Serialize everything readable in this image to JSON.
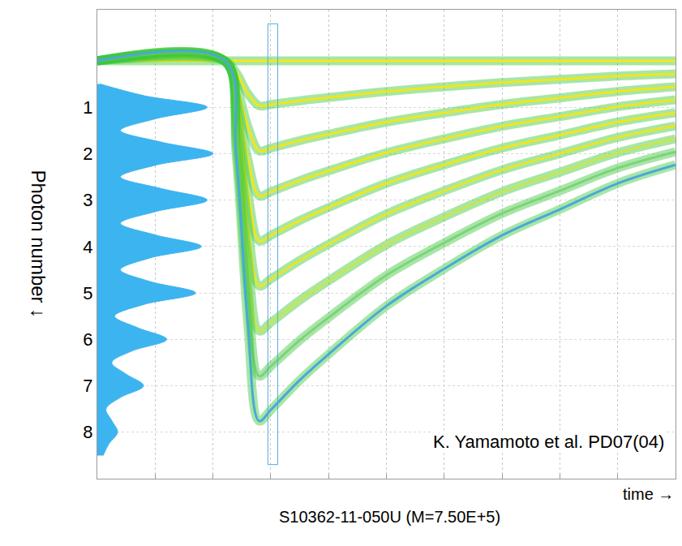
{
  "chart_data": {
    "type": "line",
    "x_label": "time →",
    "y_label": "Photon number ↓",
    "caption": "S10362-11-050U (M=7.50E+5)",
    "annotations": [
      "K. Yamamoto et al. PD07(04)"
    ],
    "x": [
      0,
      2.2,
      2.4,
      2.6,
      2.8,
      3,
      3.5,
      4,
      5,
      6,
      7,
      8,
      9,
      10
    ],
    "series": [
      {
        "color": "#f5e61e",
        "values": [
          0,
          0,
          0,
          0,
          0,
          0,
          0,
          0,
          0,
          0,
          0,
          0,
          0,
          0
        ]
      },
      {
        "color": "#f0e61e",
        "values": [
          0,
          0,
          0.25,
          0.7,
          0.97,
          0.94,
          0.86,
          0.79,
          0.66,
          0.56,
          0.47,
          0.4,
          0.33,
          0.28
        ]
      },
      {
        "color": "#f0e61e",
        "values": [
          0,
          0,
          0.5,
          1.4,
          1.94,
          1.88,
          1.72,
          1.58,
          1.32,
          1.12,
          0.94,
          0.8,
          0.66,
          0.56
        ]
      },
      {
        "color": "#f0e61e",
        "values": [
          0,
          0,
          0.75,
          2.1,
          2.91,
          2.82,
          2.58,
          2.37,
          1.98,
          1.68,
          1.41,
          1.2,
          0.99,
          0.84
        ]
      },
      {
        "color": "#f0e61e",
        "values": [
          0,
          0,
          1,
          2.8,
          3.88,
          3.76,
          3.44,
          3.16,
          2.64,
          2.24,
          1.88,
          1.6,
          1.32,
          1.12
        ]
      },
      {
        "color": "#e8e628",
        "values": [
          0,
          0,
          1.25,
          3.5,
          4.85,
          4.7,
          4.3,
          3.95,
          3.3,
          2.8,
          2.35,
          2,
          1.65,
          1.4
        ]
      },
      {
        "color": "#c8e650",
        "values": [
          0,
          0,
          1.5,
          4.2,
          5.82,
          5.64,
          5.16,
          4.74,
          3.96,
          3.36,
          2.82,
          2.4,
          1.98,
          1.68
        ]
      },
      {
        "color": "#7fd27a",
        "values": [
          0,
          0,
          1.75,
          4.9,
          6.79,
          6.58,
          6.02,
          5.53,
          4.62,
          3.92,
          3.29,
          2.8,
          2.31,
          1.96
        ]
      },
      {
        "color": "#4aa8d8",
        "values": [
          0,
          0,
          2,
          5.6,
          7.76,
          7.52,
          6.88,
          6.32,
          5.28,
          4.48,
          3.76,
          3.2,
          2.64,
          2.24
        ]
      }
    ],
    "xlim": [
      0,
      10
    ],
    "xticks": [
      0,
      1,
      2,
      3,
      4,
      5,
      6,
      7,
      8,
      9,
      10
    ],
    "ylim": [
      9,
      -1.1
    ],
    "yticks": [
      1,
      2,
      3,
      4,
      5,
      6,
      7,
      8
    ],
    "grid": true,
    "tick_labels": "y",
    "histogram": {
      "color": "#3cb4f0",
      "xlim": [
        0,
        100
      ],
      "photon_number": [
        0.5,
        0.75,
        1,
        1.25,
        1.5,
        1.75,
        2,
        2.25,
        2.5,
        2.75,
        3,
        3.25,
        3.5,
        3.75,
        4,
        4.25,
        4.5,
        4.75,
        5,
        5.25,
        5.5,
        5.75,
        6,
        6.25,
        6.5,
        6.75,
        7,
        7.25,
        7.5,
        7.75,
        8,
        8.25,
        8.5
      ],
      "counts": [
        0.5,
        8,
        19,
        10,
        4,
        11,
        20,
        10,
        4,
        11,
        19,
        10,
        4,
        10,
        18,
        9,
        4,
        9,
        17,
        8,
        3,
        7,
        12,
        6,
        2.5,
        5,
        8,
        4,
        1.5,
        2.5,
        3.5,
        2,
        1
      ]
    },
    "gate": [
      2.95,
      3.12
    ]
  }
}
